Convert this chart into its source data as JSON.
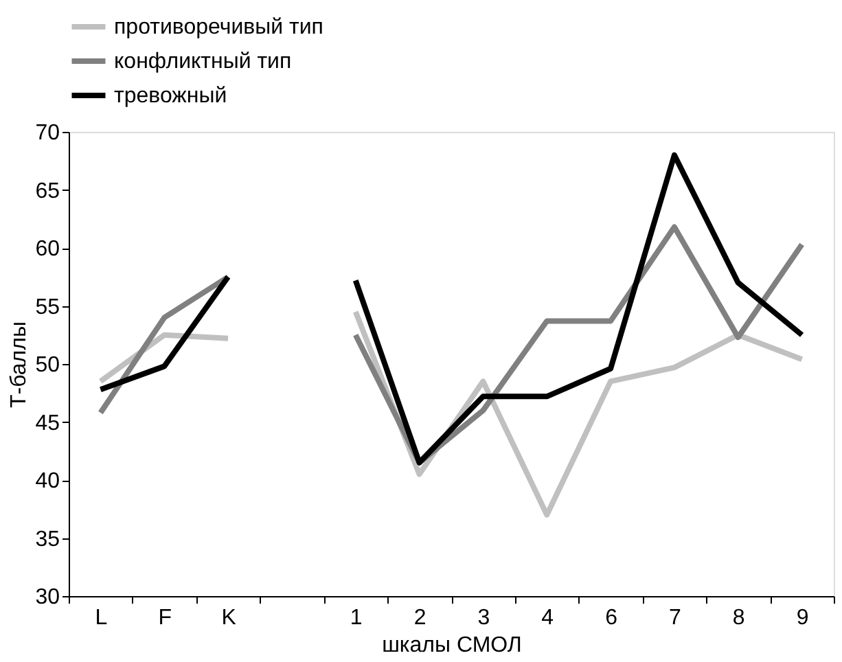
{
  "chart_data": {
    "type": "line",
    "xlabel": "шкалы СМОЛ",
    "ylabel": "Т-баллы",
    "categories": [
      "L",
      "F",
      "K",
      null,
      "1",
      "2",
      "3",
      "4",
      "6",
      "7",
      "8",
      "9"
    ],
    "series": [
      {
        "name": "противоречивый тип",
        "color": "#c0c0c0",
        "values": [
          48.5,
          52.5,
          52.2,
          null,
          54.5,
          40.5,
          48.5,
          37,
          48.5,
          49.7,
          52.5,
          50.4
        ]
      },
      {
        "name": "конфликтный тип",
        "color": "#808080",
        "values": [
          45.8,
          54,
          57.5,
          null,
          52.5,
          41.5,
          46,
          53.7,
          53.7,
          61.8,
          52.3,
          60.3
        ]
      },
      {
        "name": "тревожный",
        "color": "#000000",
        "values": [
          47.8,
          49.8,
          57.5,
          null,
          57.2,
          41.5,
          47.2,
          47.2,
          49.6,
          68,
          57,
          52.5
        ]
      }
    ],
    "ylim": [
      30,
      70
    ],
    "yticks": [
      30,
      35,
      40,
      45,
      50,
      55,
      60,
      65,
      70
    ],
    "grid": false,
    "legend": "top",
    "marker": "none",
    "line_style": "solid"
  }
}
